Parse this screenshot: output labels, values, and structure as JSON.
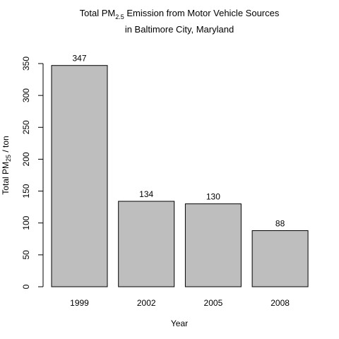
{
  "chart_data": {
    "type": "bar",
    "title": {
      "line1_prefix": "Total PM",
      "line1_subscript": "2.5",
      "line1_suffix": " Emission from Motor Vehicle Sources",
      "line2": "in Baltimore City, Maryland"
    },
    "xlabel": "Year",
    "ylabel": {
      "prefix": "Total PM",
      "subscript": "25",
      "suffix": " / ton"
    },
    "categories": [
      "1999",
      "2002",
      "2005",
      "2008"
    ],
    "values": [
      347,
      134,
      130,
      88
    ],
    "data_labels": [
      "347",
      "134",
      "130",
      "88"
    ],
    "ylim": [
      0,
      350
    ],
    "yticks": [
      0,
      50,
      100,
      150,
      200,
      250,
      300,
      350
    ],
    "ytick_labels": [
      "0",
      "50",
      "100",
      "150",
      "200",
      "250",
      "300",
      "350"
    ],
    "grid": false,
    "bar_color": "#bebebe",
    "bar_edge_color": "#000000"
  }
}
